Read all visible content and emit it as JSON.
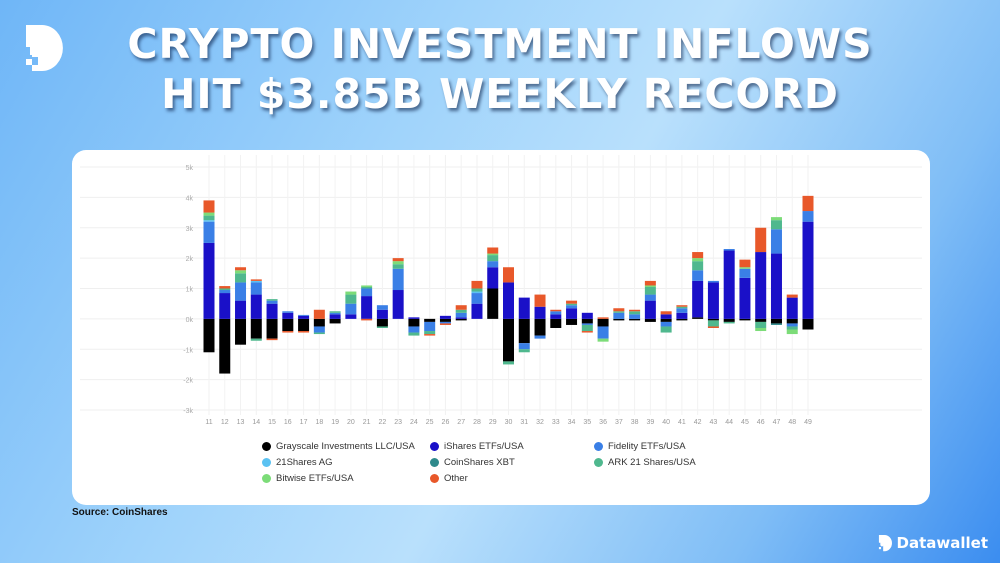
{
  "header": {
    "title_line1": "CRYPTO INVESTMENT INFLOWS",
    "title_line2": "HIT $3.85B WEEKLY RECORD"
  },
  "source": "Source: CoinShares",
  "brand": {
    "name": "Datawallet",
    "icon": "datawallet-logo-icon"
  },
  "chart_data": {
    "type": "bar",
    "stacked": true,
    "title": "",
    "xlabel": "",
    "ylabel": "",
    "ylim": [
      -3000,
      5000
    ],
    "yticks": [
      5000,
      4000,
      3000,
      2000,
      1000,
      0,
      -1000,
      -2000,
      -3000
    ],
    "ytick_labels": [
      "5k",
      "4k",
      "3k",
      "2k",
      "1k",
      "0k",
      "-1k",
      "-2k",
      "-3k"
    ],
    "grid": true,
    "legend_placement": "bottom",
    "categories": [
      "11",
      "12",
      "13",
      "14",
      "15",
      "16",
      "17",
      "18",
      "19",
      "20",
      "21",
      "22",
      "23",
      "24",
      "25",
      "26",
      "27",
      "28",
      "29",
      "30",
      "31",
      "32",
      "33",
      "34",
      "35",
      "36",
      "37",
      "38",
      "39",
      "40",
      "41",
      "42",
      "43",
      "44",
      "45",
      "46",
      "47",
      "48",
      "49"
    ],
    "series": [
      {
        "name": "Grayscale Investments LLC/USA",
        "color": "#000000",
        "values": [
          -1100,
          -1800,
          -850,
          -650,
          -650,
          -400,
          -400,
          -250,
          -150,
          0,
          0,
          -250,
          0,
          -250,
          -100,
          -100,
          -50,
          0,
          1000,
          -1400,
          -800,
          -550,
          -300,
          -200,
          -150,
          -250,
          -50,
          -50,
          -100,
          -100,
          -50,
          50,
          -50,
          -100,
          -50,
          -100,
          -150,
          -150,
          -350
        ]
      },
      {
        "name": "iShares ETFs/USA",
        "color": "#1a10c8",
        "values": [
          2500,
          850,
          600,
          800,
          500,
          200,
          100,
          0,
          150,
          150,
          750,
          300,
          950,
          50,
          0,
          100,
          50,
          500,
          700,
          1200,
          700,
          400,
          150,
          350,
          200,
          0,
          0,
          0,
          600,
          150,
          200,
          1200,
          1200,
          2250,
          1350,
          2200,
          2150,
          700,
          3200
        ]
      },
      {
        "name": "Fidelity ETFs/USA",
        "color": "#3a7fe6",
        "values": [
          700,
          100,
          600,
          400,
          100,
          50,
          30,
          -200,
          50,
          350,
          250,
          150,
          700,
          -200,
          -300,
          -50,
          150,
          350,
          200,
          0,
          -200,
          -100,
          100,
          100,
          -50,
          -400,
          200,
          150,
          200,
          -150,
          150,
          350,
          50,
          50,
          300,
          0,
          800,
          -100,
          350
        ]
      },
      {
        "name": "21Shares AG",
        "color": "#5bc2f2",
        "values": [
          50,
          0,
          0,
          50,
          0,
          0,
          0,
          0,
          0,
          0,
          0,
          0,
          0,
          0,
          0,
          0,
          0,
          50,
          0,
          0,
          0,
          0,
          0,
          0,
          0,
          0,
          0,
          0,
          0,
          0,
          0,
          0,
          0,
          0,
          0,
          0,
          0,
          0,
          0
        ]
      },
      {
        "name": "CoinShares XBT",
        "color": "#2f8a8c",
        "values": [
          0,
          0,
          0,
          0,
          0,
          0,
          0,
          0,
          0,
          0,
          0,
          0,
          0,
          0,
          0,
          0,
          0,
          0,
          0,
          0,
          0,
          0,
          0,
          0,
          0,
          0,
          0,
          0,
          0,
          0,
          0,
          0,
          0,
          0,
          0,
          0,
          -50,
          0,
          0
        ]
      },
      {
        "name": "ARK 21 Shares/USA",
        "color": "#4fb88e",
        "values": [
          150,
          50,
          300,
          -70,
          50,
          0,
          0,
          -50,
          50,
          300,
          50,
          -50,
          150,
          -100,
          -100,
          0,
          100,
          100,
          200,
          -100,
          -100,
          0,
          0,
          50,
          -200,
          0,
          50,
          100,
          250,
          -200,
          50,
          300,
          -200,
          -50,
          0,
          -200,
          300,
          -100,
          0
        ]
      },
      {
        "name": "Bitwise ETFs/USA",
        "color": "#7cdc78",
        "values": [
          100,
          0,
          100,
          0,
          0,
          0,
          0,
          0,
          0,
          100,
          50,
          0,
          100,
          0,
          0,
          0,
          0,
          0,
          50,
          0,
          0,
          0,
          0,
          0,
          0,
          -100,
          0,
          0,
          50,
          0,
          0,
          100,
          0,
          0,
          50,
          -100,
          100,
          -150,
          0
        ]
      },
      {
        "name": "Other",
        "color": "#e8582a",
        "values": [
          400,
          80,
          100,
          50,
          -50,
          -50,
          -50,
          300,
          0,
          0,
          -50,
          0,
          100,
          0,
          -50,
          -50,
          150,
          250,
          200,
          500,
          0,
          400,
          50,
          100,
          -50,
          50,
          100,
          50,
          150,
          100,
          50,
          200,
          -50,
          0,
          250,
          800,
          0,
          100,
          500
        ]
      }
    ]
  }
}
